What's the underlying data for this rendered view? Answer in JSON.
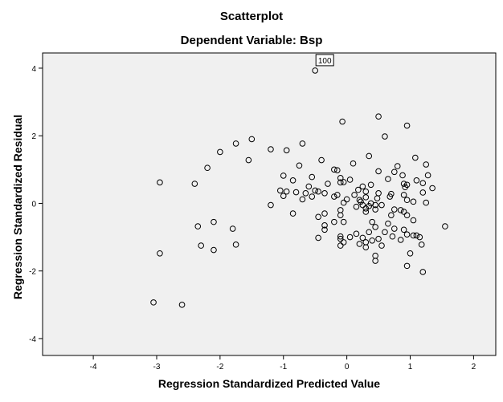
{
  "chart_data": {
    "type": "scatter",
    "title": "Scatterplot",
    "subtitle": "Dependent Variable: Bsp",
    "xlabel": "Regression Standardized Predicted Value",
    "ylabel": "Regression Standardized Residual",
    "xlim": [
      -4.8,
      2.35
    ],
    "ylim": [
      -4.5,
      4.45
    ],
    "xticks": [
      -4,
      -3,
      -2,
      -1,
      0,
      1,
      2
    ],
    "yticks": [
      -4,
      -2,
      0,
      2,
      4
    ],
    "grid": false,
    "plot_background": "#f0f0f0",
    "marker_color": "#000000",
    "annotations": [
      {
        "text": "100",
        "x": -0.5,
        "y": 3.93
      }
    ],
    "points": [
      [
        -0.5,
        3.93
      ],
      [
        0.5,
        2.57
      ],
      [
        -0.07,
        2.42
      ],
      [
        0.95,
        2.3
      ],
      [
        0.6,
        1.98
      ],
      [
        -1.5,
        1.9
      ],
      [
        -1.75,
        1.77
      ],
      [
        -0.7,
        1.77
      ],
      [
        -1.2,
        1.6
      ],
      [
        -0.95,
        1.57
      ],
      [
        -2.0,
        1.52
      ],
      [
        0.35,
        1.4
      ],
      [
        1.08,
        1.35
      ],
      [
        -1.55,
        1.28
      ],
      [
        -0.4,
        1.28
      ],
      [
        0.1,
        1.18
      ],
      [
        1.25,
        1.15
      ],
      [
        -0.75,
        1.12
      ],
      [
        0.8,
        1.1
      ],
      [
        -2.2,
        1.05
      ],
      [
        -0.2,
        1.0
      ],
      [
        -0.15,
        0.98
      ],
      [
        0.75,
        0.93
      ],
      [
        0.5,
        0.95
      ],
      [
        -1.0,
        0.82
      ],
      [
        0.88,
        0.83
      ],
      [
        1.28,
        0.83
      ],
      [
        -0.55,
        0.78
      ],
      [
        -0.1,
        0.75
      ],
      [
        0.05,
        0.7
      ],
      [
        -0.85,
        0.68
      ],
      [
        0.65,
        0.72
      ],
      [
        1.1,
        0.68
      ],
      [
        -2.4,
        0.58
      ],
      [
        -2.95,
        0.62
      ],
      [
        -0.1,
        0.62
      ],
      [
        -0.05,
        0.63
      ],
      [
        0.9,
        0.58
      ],
      [
        0.95,
        0.55
      ],
      [
        1.2,
        0.6
      ],
      [
        0.38,
        0.55
      ],
      [
        -0.3,
        0.58
      ],
      [
        0.25,
        0.5
      ],
      [
        0.92,
        0.48
      ],
      [
        -0.6,
        0.5
      ],
      [
        1.35,
        0.45
      ],
      [
        0.18,
        0.4
      ],
      [
        -0.5,
        0.38
      ],
      [
        -0.45,
        0.35
      ],
      [
        0.3,
        0.35
      ],
      [
        -0.95,
        0.35
      ],
      [
        -1.05,
        0.38
      ],
      [
        -0.8,
        0.33
      ],
      [
        0.5,
        0.3
      ],
      [
        0.7,
        0.28
      ],
      [
        1.2,
        0.32
      ],
      [
        -0.35,
        0.3
      ],
      [
        -0.65,
        0.3
      ],
      [
        -0.15,
        0.25
      ],
      [
        0.12,
        0.25
      ],
      [
        0.9,
        0.25
      ],
      [
        -0.55,
        0.2
      ],
      [
        -0.2,
        0.2
      ],
      [
        0.68,
        0.2
      ],
      [
        -1.0,
        0.22
      ],
      [
        0.3,
        0.18
      ],
      [
        0.48,
        0.15
      ],
      [
        -0.7,
        0.12
      ],
      [
        0.0,
        0.12
      ],
      [
        0.2,
        0.1
      ],
      [
        0.95,
        0.1
      ],
      [
        0.22,
        0.05
      ],
      [
        1.05,
        0.05
      ],
      [
        0.38,
        0.0
      ],
      [
        0.45,
        -0.05
      ],
      [
        -0.05,
        0.02
      ],
      [
        0.25,
        -0.05
      ],
      [
        -1.2,
        -0.05
      ],
      [
        0.35,
        -0.08
      ],
      [
        0.55,
        -0.05
      ],
      [
        0.15,
        -0.1
      ],
      [
        0.3,
        -0.15
      ],
      [
        1.25,
        0.02
      ],
      [
        0.45,
        -0.18
      ],
      [
        0.75,
        -0.18
      ],
      [
        -0.1,
        -0.2
      ],
      [
        0.85,
        -0.2
      ],
      [
        0.3,
        -0.25
      ],
      [
        0.9,
        -0.25
      ],
      [
        -0.35,
        -0.3
      ],
      [
        -0.85,
        -0.3
      ],
      [
        0.7,
        -0.35
      ],
      [
        0.95,
        -0.35
      ],
      [
        -0.1,
        -0.35
      ],
      [
        -0.45,
        -0.4
      ],
      [
        1.05,
        -0.5
      ],
      [
        0.4,
        -0.55
      ],
      [
        -0.2,
        -0.55
      ],
      [
        -2.1,
        -0.55
      ],
      [
        -0.05,
        -0.55
      ],
      [
        0.65,
        -0.6
      ],
      [
        -0.35,
        -0.65
      ],
      [
        -2.35,
        -0.68
      ],
      [
        0.45,
        -0.7
      ],
      [
        1.55,
        -0.68
      ],
      [
        0.75,
        -0.75
      ],
      [
        -1.8,
        -0.75
      ],
      [
        -0.35,
        -0.78
      ],
      [
        0.9,
        -0.78
      ],
      [
        0.35,
        -0.85
      ],
      [
        0.6,
        -0.85
      ],
      [
        0.15,
        -0.9
      ],
      [
        0.95,
        -0.92
      ],
      [
        1.05,
        -0.95
      ],
      [
        1.1,
        -0.95
      ],
      [
        -0.1,
        -0.98
      ],
      [
        0.72,
        -0.98
      ],
      [
        0.05,
        -1.0
      ],
      [
        -0.45,
        -1.02
      ],
      [
        1.15,
        -1.0
      ],
      [
        0.25,
        -1.02
      ],
      [
        0.5,
        -1.05
      ],
      [
        -0.1,
        -1.05
      ],
      [
        0.85,
        -1.08
      ],
      [
        0.4,
        -1.1
      ],
      [
        -0.05,
        -1.15
      ],
      [
        0.3,
        -1.15
      ],
      [
        0.2,
        -1.2
      ],
      [
        -1.75,
        -1.22
      ],
      [
        -2.3,
        -1.25
      ],
      [
        -0.1,
        -1.25
      ],
      [
        0.55,
        -1.25
      ],
      [
        0.3,
        -1.3
      ],
      [
        1.18,
        -1.22
      ],
      [
        -2.1,
        -1.38
      ],
      [
        -2.95,
        -1.48
      ],
      [
        1.0,
        -1.48
      ],
      [
        0.45,
        -1.55
      ],
      [
        0.45,
        -1.7
      ],
      [
        0.95,
        -1.85
      ],
      [
        1.2,
        -2.03
      ],
      [
        -3.05,
        -2.93
      ],
      [
        -2.6,
        -3.0
      ]
    ]
  }
}
